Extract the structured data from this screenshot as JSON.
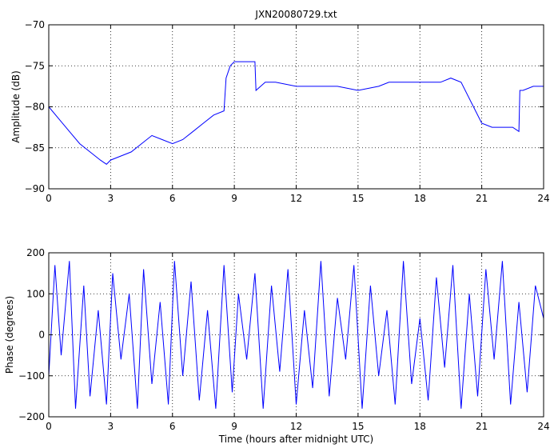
{
  "chart_data": [
    {
      "type": "line",
      "title": "JXN20080729.txt",
      "xlabel": "",
      "ylabel": "Amplitude (dB)",
      "xlim": [
        0,
        24
      ],
      "ylim": [
        -90,
        -70
      ],
      "xticks": [
        0,
        3,
        6,
        9,
        12,
        15,
        18,
        21,
        24
      ],
      "yticks": [
        -90,
        -85,
        -80,
        -75,
        -70
      ],
      "xtick_labels": [
        "0",
        "3",
        "6",
        "9",
        "12",
        "15",
        "18",
        "21",
        "24"
      ],
      "ytick_labels": [
        "−90",
        "−85",
        "−80",
        "−75",
        "−70"
      ],
      "grid": true,
      "line_color": "#0000ff",
      "series": [
        {
          "x": [
            0,
            0.5,
            1,
            1.5,
            2,
            2.5,
            2.8,
            3,
            3.5,
            4,
            4.5,
            5,
            5.5,
            6,
            6.5,
            7,
            7.5,
            8,
            8.5,
            8.6,
            8.8,
            9,
            9.5,
            10,
            10.05,
            10.5,
            11,
            12,
            13,
            14,
            15,
            16,
            16.5,
            17,
            18,
            19,
            19.5,
            20,
            20.5,
            21,
            21.5,
            22,
            22.5,
            22.8,
            22.85,
            23,
            23.5,
            24
          ],
          "y": [
            -80,
            -81.5,
            -83,
            -84.5,
            -85.5,
            -86.5,
            -87,
            -86.5,
            -86,
            -85.5,
            -84.5,
            -83.5,
            -84,
            -84.5,
            -84,
            -83,
            -82,
            -81,
            -80.5,
            -76.5,
            -75,
            -74.5,
            -74.5,
            -74.5,
            -78,
            -77,
            -77,
            -77.5,
            -77.5,
            -77.5,
            -78,
            -77.5,
            -77,
            -77,
            -77,
            -77,
            -76.5,
            -77,
            -79.5,
            -82,
            -82.5,
            -82.5,
            -82.5,
            -83,
            -78,
            -78,
            -77.5,
            -77.5
          ]
        }
      ]
    },
    {
      "type": "line",
      "title": "",
      "xlabel": "Time (hours after midnight UTC)",
      "ylabel": "Phase (degrees)",
      "xlim": [
        0,
        24
      ],
      "ylim": [
        -200,
        200
      ],
      "xticks": [
        0,
        3,
        6,
        9,
        12,
        15,
        18,
        21,
        24
      ],
      "yticks": [
        -200,
        -100,
        0,
        100,
        200
      ],
      "xtick_labels": [
        "0",
        "3",
        "6",
        "9",
        "12",
        "15",
        "18",
        "21",
        "24"
      ],
      "ytick_labels": [
        "−200",
        "−100",
        "0",
        "100",
        "200"
      ],
      "grid": true,
      "line_color": "#0000ff",
      "series": [
        {
          "x": [
            0,
            0.3,
            0.6,
            1.0,
            1.3,
            1.7,
            2.0,
            2.4,
            2.8,
            3.1,
            3.5,
            3.9,
            4.3,
            4.6,
            5.0,
            5.4,
            5.8,
            6.1,
            6.5,
            6.9,
            7.3,
            7.7,
            8.1,
            8.5,
            8.9,
            9.2,
            9.6,
            10.0,
            10.4,
            10.8,
            11.2,
            11.6,
            12.0,
            12.4,
            12.8,
            13.2,
            13.6,
            14.0,
            14.4,
            14.8,
            15.2,
            15.6,
            16.0,
            16.4,
            16.8,
            17.2,
            17.6,
            18.0,
            18.4,
            18.8,
            19.2,
            19.6,
            20.0,
            20.4,
            20.8,
            21.2,
            21.6,
            22.0,
            22.4,
            22.8,
            23.2,
            23.6,
            24.0
          ],
          "y": [
            -100,
            170,
            -50,
            180,
            -180,
            120,
            -150,
            60,
            -170,
            150,
            -60,
            100,
            -180,
            160,
            -120,
            80,
            -170,
            180,
            -100,
            130,
            -160,
            60,
            -180,
            170,
            -140,
            100,
            -60,
            150,
            -180,
            120,
            -90,
            160,
            -170,
            60,
            -130,
            180,
            -150,
            90,
            -60,
            170,
            -180,
            120,
            -100,
            60,
            -170,
            180,
            -120,
            40,
            -160,
            140,
            -80,
            170,
            -180,
            100,
            -150,
            160,
            -60,
            180,
            -170,
            80,
            -140,
            120,
            40
          ]
        }
      ]
    }
  ]
}
